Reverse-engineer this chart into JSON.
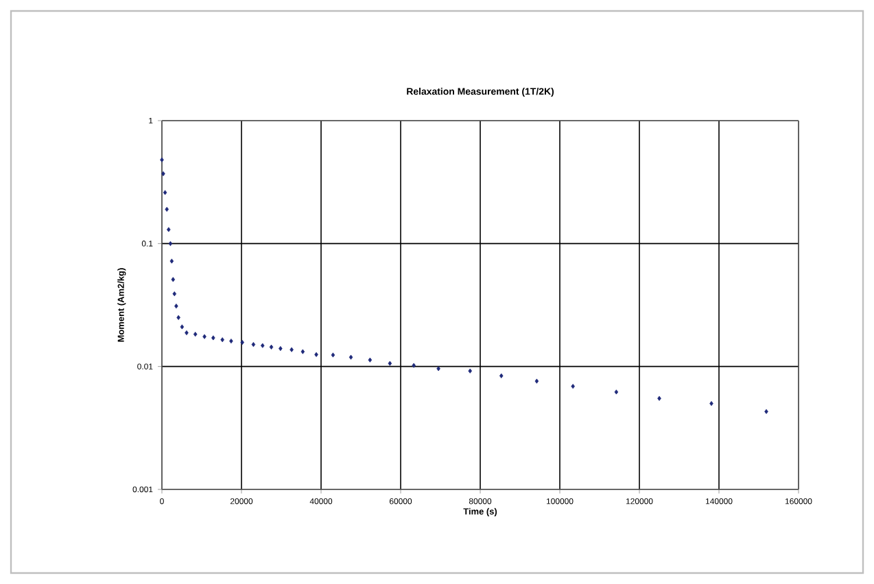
{
  "chart_data": {
    "type": "scatter",
    "title": "Relaxation Measurement (1T/2K)",
    "xlabel": "Time (s)",
    "ylabel": "Moment (Am2/kg)",
    "log": "y",
    "grid": true,
    "marker": "diamond",
    "xlim": [
      0,
      160000
    ],
    "xticks": [
      0,
      20000,
      40000,
      60000,
      80000,
      100000,
      120000,
      140000,
      160000
    ],
    "ylim": [
      0.001,
      1
    ],
    "yticks": [
      0.001,
      0.01,
      0.1,
      1
    ],
    "series": [
      {
        "color": "#1f2a7a",
        "x": [
          0,
          340,
          790,
          1240,
          1690,
          2140,
          2470,
          2810,
          3150,
          3600,
          4160,
          5060,
          6200,
          8400,
          10700,
          12900,
          15200,
          17400,
          20200,
          23000,
          25300,
          27500,
          29800,
          32600,
          35400,
          38800,
          43000,
          47500,
          52300,
          57300,
          63300,
          69500,
          77450,
          85300,
          94200,
          103300,
          114200,
          125000,
          138100,
          151900
        ],
        "values": [
          0.48,
          0.37,
          0.26,
          0.19,
          0.13,
          0.1,
          0.072,
          0.051,
          0.039,
          0.031,
          0.025,
          0.021,
          0.0188,
          0.0183,
          0.0175,
          0.0171,
          0.0165,
          0.0161,
          0.0157,
          0.0151,
          0.0148,
          0.0144,
          0.014,
          0.0137,
          0.0132,
          0.0125,
          0.0124,
          0.0119,
          0.0113,
          0.0106,
          0.0102,
          0.0096,
          0.0092,
          0.0084,
          0.0076,
          0.0069,
          0.0062,
          0.0055,
          0.005,
          0.0043
        ]
      }
    ]
  }
}
